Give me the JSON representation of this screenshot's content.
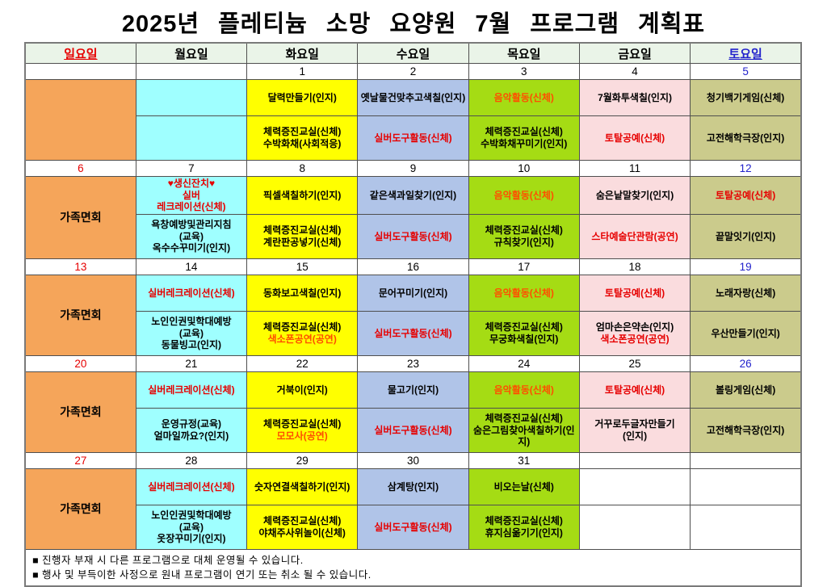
{
  "title": "2025년 플레티늄 소망 요양원 7월 프로그램 계획표",
  "days": [
    "일요일",
    "월요일",
    "화요일",
    "수요일",
    "목요일",
    "금요일",
    "토요일"
  ],
  "colors": {
    "header": "#EAF4E8",
    "sun": "#F5A55A",
    "mon": "#9FFFFF",
    "tue": "#FFFF00",
    "wed": "#B0C4E8",
    "thu": "#A5DC14",
    "fri": "#FADCDE",
    "sat": "#CBCB8C",
    "red_text": "#E60000",
    "orange_text": "#FF4E00",
    "saturday_blue": "#2222CC"
  },
  "notes": [
    "■ 진행자 부재 시 다른 프로그램으로 대체 운영될 수 있습니다.",
    "■ 행사 및 부득이한 사정으로 원내 프로그램이 연기 또는 취소 될 수 있습니다."
  ],
  "weeks": [
    {
      "dates": [
        {
          "t": "",
          "c": "k"
        },
        {
          "t": "",
          "c": "k"
        },
        {
          "t": "1",
          "c": "k"
        },
        {
          "t": "2",
          "c": "k"
        },
        {
          "t": "3",
          "c": "k"
        },
        {
          "t": "4",
          "c": "k"
        },
        {
          "t": "5",
          "c": "blue"
        }
      ],
      "sun": "",
      "cols": [
        {
          "top": {
            "lines": []
          },
          "bottom": {
            "lines": []
          }
        },
        {
          "top": {
            "lines": [
              {
                "t": "달력만들기(인지)",
                "c": "k"
              }
            ]
          },
          "bottom": {
            "lines": [
              {
                "t": "체력증진교실(신체)",
                "c": "k"
              },
              {
                "t": "수박화채(사회적응)",
                "c": "k"
              }
            ]
          }
        },
        {
          "top": {
            "lines": [
              {
                "t": "옛날물건맞추고색칠(인지)",
                "c": "k"
              }
            ]
          },
          "bottom": {
            "lines": [
              {
                "t": "실버도구활동(신체)",
                "c": "r"
              }
            ]
          }
        },
        {
          "top": {
            "lines": [
              {
                "t": "음악활동(신체)",
                "c": "o"
              }
            ]
          },
          "bottom": {
            "lines": [
              {
                "t": "체력증진교실(신체)",
                "c": "k"
              },
              {
                "t": "수박화채꾸미기(인지)",
                "c": "k"
              }
            ]
          }
        },
        {
          "top": {
            "lines": [
              {
                "t": "7월화투색칠(인지)",
                "c": "k"
              }
            ]
          },
          "bottom": {
            "lines": [
              {
                "t": "토탈공예(신체)",
                "c": "r"
              }
            ]
          }
        },
        {
          "top": {
            "lines": [
              {
                "t": "청기백기게임(신체)",
                "c": "k"
              }
            ]
          },
          "bottom": {
            "lines": [
              {
                "t": "고전해학극장(인지)",
                "c": "k"
              }
            ]
          }
        }
      ]
    },
    {
      "dates": [
        {
          "t": "6",
          "c": "red"
        },
        {
          "t": "7",
          "c": "k"
        },
        {
          "t": "8",
          "c": "k"
        },
        {
          "t": "9",
          "c": "k"
        },
        {
          "t": "10",
          "c": "k"
        },
        {
          "t": "11",
          "c": "k"
        },
        {
          "t": "12",
          "c": "blue"
        }
      ],
      "sun": "가족면회",
      "cols": [
        {
          "top": {
            "lines": [
              {
                "t": "♥생신잔치♥",
                "c": "r"
              },
              {
                "t": "실버",
                "c": "r"
              },
              {
                "t": "레크레이션(신체)",
                "c": "r"
              }
            ]
          },
          "bottom": {
            "lines": [
              {
                "t": "욕창예방및관리지침",
                "c": "k"
              },
              {
                "t": "(교육)",
                "c": "k"
              },
              {
                "t": "옥수수꾸미기(인지)",
                "c": "k"
              }
            ]
          }
        },
        {
          "top": {
            "lines": [
              {
                "t": "픽셀색칠하기(인지)",
                "c": "k"
              }
            ]
          },
          "bottom": {
            "lines": [
              {
                "t": "체력증진교실(신체)",
                "c": "k"
              },
              {
                "t": "계란판공넣기(신체)",
                "c": "k"
              }
            ]
          }
        },
        {
          "top": {
            "lines": [
              {
                "t": "같은색과일찾기(인지)",
                "c": "k"
              }
            ]
          },
          "bottom": {
            "lines": [
              {
                "t": "실버도구활동(신체)",
                "c": "r"
              }
            ]
          }
        },
        {
          "top": {
            "lines": [
              {
                "t": "음악활동(신체)",
                "c": "o"
              }
            ]
          },
          "bottom": {
            "lines": [
              {
                "t": "체력증진교실(신체)",
                "c": "k"
              },
              {
                "t": "규칙찾기(인지)",
                "c": "k"
              }
            ]
          }
        },
        {
          "top": {
            "lines": [
              {
                "t": "숨은낱말찾기(인지)",
                "c": "k"
              }
            ]
          },
          "bottom": {
            "lines": [
              {
                "t": "스타예술단관람(공연)",
                "c": "r"
              }
            ]
          }
        },
        {
          "top": {
            "lines": [
              {
                "t": "토탈공예(신체)",
                "c": "r"
              }
            ]
          },
          "bottom": {
            "lines": [
              {
                "t": "끝말잇기(인지)",
                "c": "k"
              }
            ]
          }
        }
      ]
    },
    {
      "dates": [
        {
          "t": "13",
          "c": "red"
        },
        {
          "t": "14",
          "c": "k"
        },
        {
          "t": "15",
          "c": "k"
        },
        {
          "t": "16",
          "c": "k"
        },
        {
          "t": "17",
          "c": "k"
        },
        {
          "t": "18",
          "c": "k"
        },
        {
          "t": "19",
          "c": "blue"
        }
      ],
      "sun": "가족면회",
      "cols": [
        {
          "top": {
            "lines": [
              {
                "t": "실버레크레이션(신체)",
                "c": "r"
              }
            ]
          },
          "bottom": {
            "lines": [
              {
                "t": "노인인권및학대예방",
                "c": "k"
              },
              {
                "t": "(교육)",
                "c": "k"
              },
              {
                "t": "동물빙고(인지)",
                "c": "k"
              }
            ]
          }
        },
        {
          "top": {
            "lines": [
              {
                "t": "동화보고색칠(인지)",
                "c": "k"
              }
            ]
          },
          "bottom": {
            "lines": [
              {
                "t": "체력증진교실(신체)",
                "c": "k"
              },
              {
                "t": "색소폰공연(공연)",
                "c": "o"
              }
            ]
          }
        },
        {
          "top": {
            "lines": [
              {
                "t": "문어꾸미기(인지)",
                "c": "k"
              }
            ]
          },
          "bottom": {
            "lines": [
              {
                "t": "실버도구활동(신체)",
                "c": "r"
              }
            ]
          }
        },
        {
          "top": {
            "lines": [
              {
                "t": "음악활동(신체)",
                "c": "o"
              }
            ]
          },
          "bottom": {
            "lines": [
              {
                "t": "체력증진교실(신체)",
                "c": "k"
              },
              {
                "t": "무궁화색칠(인지)",
                "c": "k"
              }
            ]
          }
        },
        {
          "top": {
            "lines": [
              {
                "t": "토탈공예(신체)",
                "c": "r"
              }
            ]
          },
          "bottom": {
            "lines": [
              {
                "t": "엄마손은약손(인지)",
                "c": "k"
              },
              {
                "t": "색소폰공연(공연)",
                "c": "r"
              }
            ]
          }
        },
        {
          "top": {
            "lines": [
              {
                "t": "노래자랑(신체)",
                "c": "k"
              }
            ]
          },
          "bottom": {
            "lines": [
              {
                "t": "우산만들기(인지)",
                "c": "k"
              }
            ]
          }
        }
      ]
    },
    {
      "dates": [
        {
          "t": "20",
          "c": "red"
        },
        {
          "t": "21",
          "c": "k"
        },
        {
          "t": "22",
          "c": "k"
        },
        {
          "t": "23",
          "c": "k"
        },
        {
          "t": "24",
          "c": "k"
        },
        {
          "t": "25",
          "c": "k"
        },
        {
          "t": "26",
          "c": "blue"
        }
      ],
      "sun": "가족면회",
      "cols": [
        {
          "top": {
            "lines": [
              {
                "t": "실버레크레이션(신체)",
                "c": "r"
              }
            ]
          },
          "bottom": {
            "lines": [
              {
                "t": "운영규정(교육)",
                "c": "k"
              },
              {
                "t": "얼마일까요?(인지)",
                "c": "k"
              }
            ]
          }
        },
        {
          "top": {
            "lines": [
              {
                "t": "거북이(인지)",
                "c": "k"
              }
            ]
          },
          "bottom": {
            "lines": [
              {
                "t": "체력증진교실(신체)",
                "c": "k"
              },
              {
                "t": "모모사(공연)",
                "c": "o"
              }
            ]
          }
        },
        {
          "top": {
            "lines": [
              {
                "t": "물고기(인지)",
                "c": "k"
              }
            ]
          },
          "bottom": {
            "lines": [
              {
                "t": "실버도구활동(신체)",
                "c": "r"
              }
            ]
          }
        },
        {
          "top": {
            "lines": [
              {
                "t": "음악활동(신체)",
                "c": "o"
              }
            ]
          },
          "bottom": {
            "lines": [
              {
                "t": "체력증진교실(신체)",
                "c": "k"
              },
              {
                "t": "숨은그림찾아색칠하기(인지)",
                "c": "k"
              }
            ]
          }
        },
        {
          "top": {
            "lines": [
              {
                "t": "토탈공예(신체)",
                "c": "r"
              }
            ]
          },
          "bottom": {
            "lines": [
              {
                "t": "거꾸로두글자만들기",
                "c": "k"
              },
              {
                "t": "(인지)",
                "c": "k"
              }
            ]
          }
        },
        {
          "top": {
            "lines": [
              {
                "t": "볼링게임(신체)",
                "c": "k"
              }
            ]
          },
          "bottom": {
            "lines": [
              {
                "t": "고전해학극장(인지)",
                "c": "k"
              }
            ]
          }
        }
      ]
    },
    {
      "dates": [
        {
          "t": "27",
          "c": "red"
        },
        {
          "t": "28",
          "c": "k"
        },
        {
          "t": "29",
          "c": "k"
        },
        {
          "t": "30",
          "c": "k"
        },
        {
          "t": "31",
          "c": "k"
        },
        {
          "t": "",
          "c": "k"
        },
        {
          "t": "",
          "c": "k"
        }
      ],
      "sun": "가족면회",
      "cols": [
        {
          "top": {
            "lines": [
              {
                "t": "실버레크레이션(신체)",
                "c": "r"
              }
            ]
          },
          "bottom": {
            "lines": [
              {
                "t": "노인인권및학대예방",
                "c": "k"
              },
              {
                "t": "(교육)",
                "c": "k"
              },
              {
                "t": "옷장꾸미기(인지)",
                "c": "k"
              }
            ]
          }
        },
        {
          "top": {
            "lines": [
              {
                "t": "숫자연결색칠하기(인지)",
                "c": "k"
              }
            ]
          },
          "bottom": {
            "lines": [
              {
                "t": "체력증진교실(신체)",
                "c": "k"
              },
              {
                "t": "야채주사위놀이(신체)",
                "c": "k"
              }
            ]
          }
        },
        {
          "top": {
            "lines": [
              {
                "t": "삼계탕(인지)",
                "c": "k"
              }
            ]
          },
          "bottom": {
            "lines": [
              {
                "t": "실버도구활동(신체)",
                "c": "r"
              }
            ]
          }
        },
        {
          "top": {
            "lines": [
              {
                "t": "비오는날(신체)",
                "c": "k"
              }
            ]
          },
          "bottom": {
            "lines": [
              {
                "t": "체력증진교실(신체)",
                "c": "k"
              },
              {
                "t": "휴지심옮기기(인지)",
                "c": "k"
              }
            ]
          }
        },
        {
          "top": {
            "lines": [],
            "plain": true
          },
          "bottom": {
            "lines": [],
            "plain": true
          }
        },
        {
          "top": {
            "lines": [],
            "plain": true
          },
          "bottom": {
            "lines": [],
            "plain": true
          }
        }
      ]
    }
  ]
}
